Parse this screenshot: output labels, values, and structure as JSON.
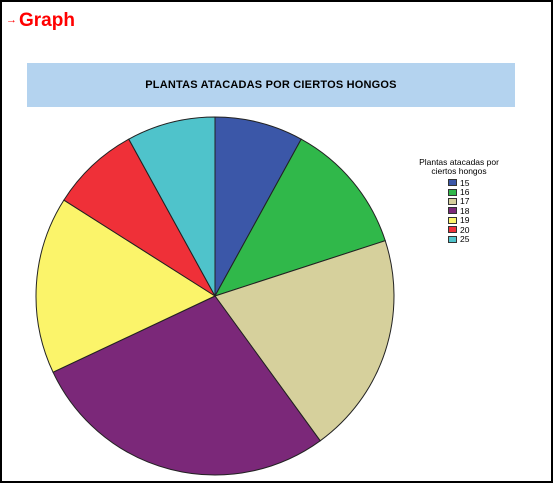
{
  "header": {
    "arrow": "→",
    "title": "Graph"
  },
  "chart_data": {
    "type": "pie",
    "title": "PLANTAS ATACADAS POR CIERTOS HONGOS",
    "legend_title": "Plantas atacadas por ciertos hongos",
    "legend_position": "right",
    "start_angle": "top",
    "direction": "clockwise",
    "categories": [
      "15",
      "16",
      "17",
      "18",
      "19",
      "20",
      "25"
    ],
    "values": [
      8,
      12,
      20,
      28,
      16,
      8,
      8
    ],
    "colors": [
      "#3b57a8",
      "#30b84a",
      "#d6d09c",
      "#7b2879",
      "#fbf46a",
      "#ef3038",
      "#4fc3cb"
    ]
  }
}
